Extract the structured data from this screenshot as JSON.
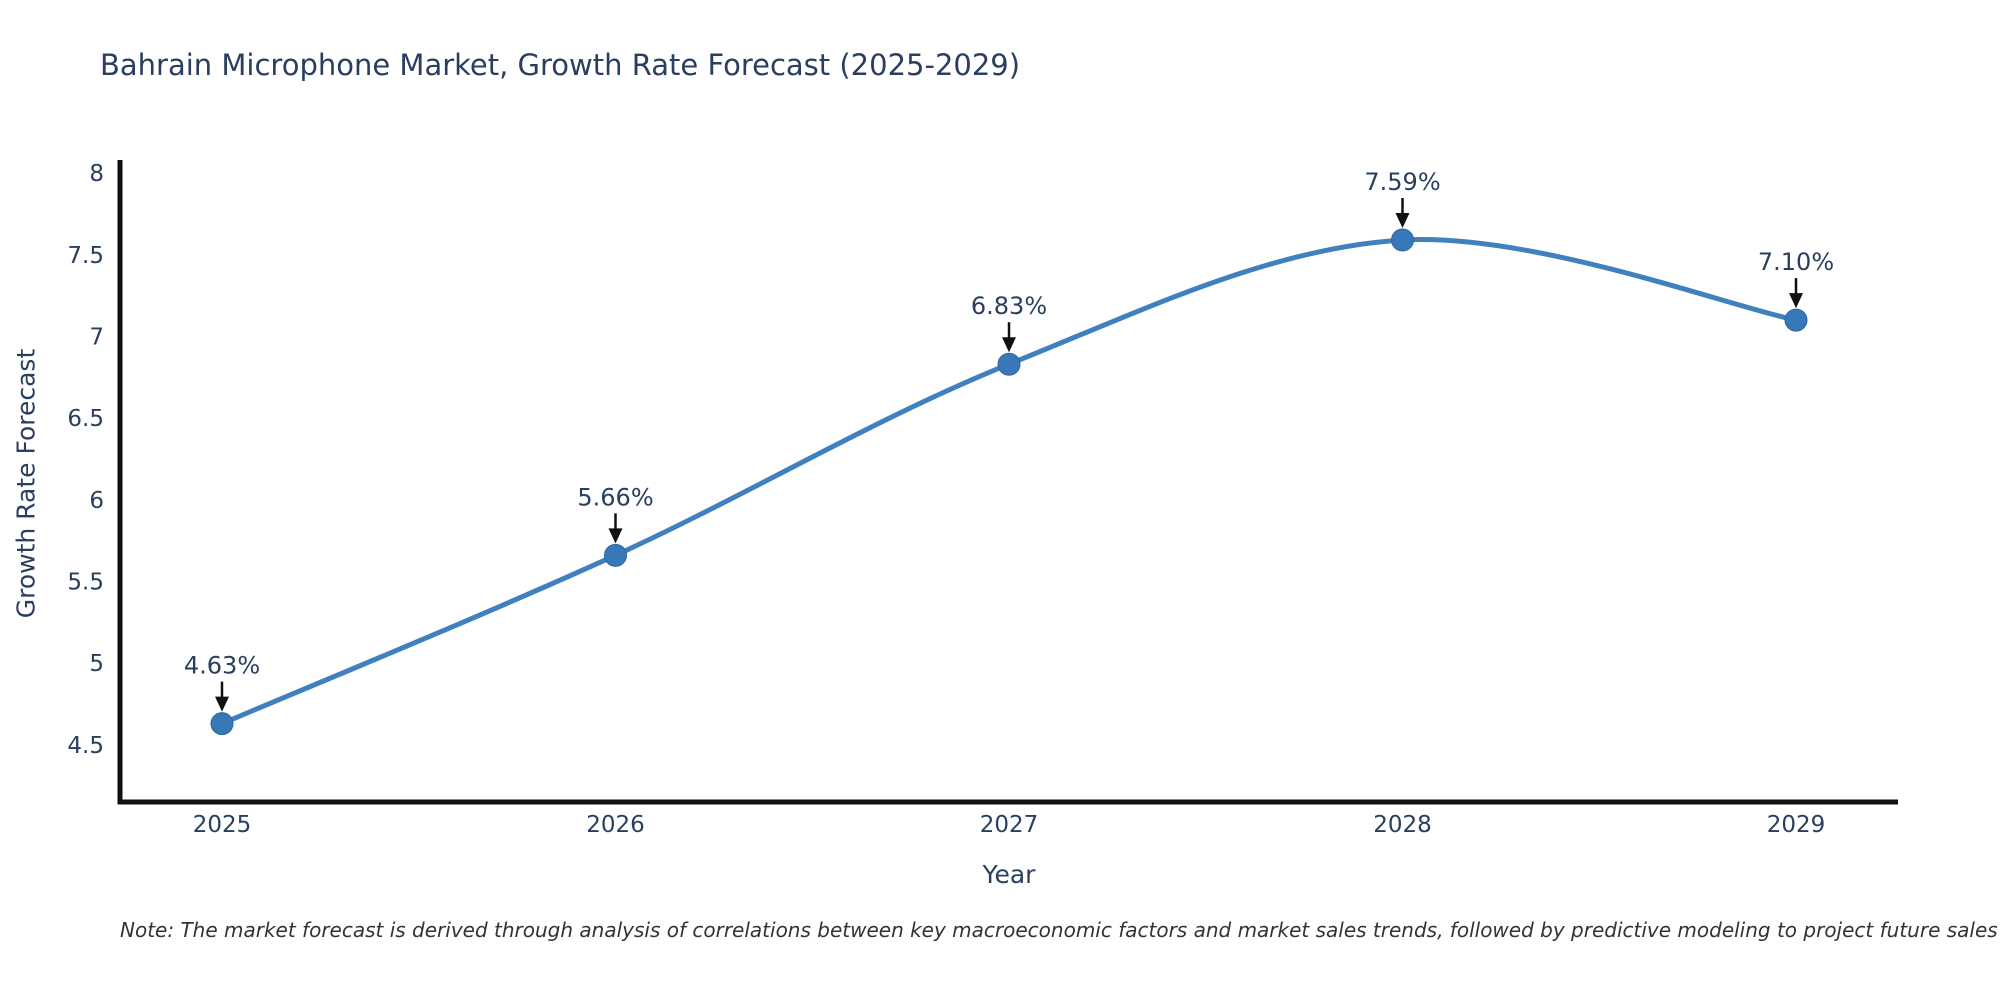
{
  "chart_data": {
    "type": "line",
    "title": "Bahrain Microphone Market, Growth Rate Forecast (2025-2029)",
    "xlabel": "Year",
    "ylabel": "Growth Rate Forecast",
    "categories": [
      "2025",
      "2026",
      "2027",
      "2028",
      "2029"
    ],
    "values": [
      4.63,
      5.66,
      6.83,
      7.59,
      7.1
    ],
    "point_labels": [
      "4.63%",
      "5.66%",
      "6.83%",
      "7.59%",
      "7.10%"
    ],
    "yticks": [
      4.5,
      5,
      5.5,
      6,
      6.5,
      7,
      7.5,
      8
    ],
    "ytick_labels": [
      "4.5",
      "5",
      "5.5",
      "6",
      "6.5",
      "7",
      "7.5",
      "8"
    ],
    "ylim": [
      4.15,
      8.08
    ],
    "line_shape": "spline",
    "grid": false,
    "legend": "none",
    "colors": {
      "line": "#4080bf",
      "marker_fill": "#3778b8",
      "marker_stroke": "#2f669f",
      "axis": "#111111",
      "text": "#2a3f5f",
      "annotation_text": "#2a3f5f",
      "annotation_arrow": "#111111",
      "background": "#ffffff"
    },
    "note": "Note: The market forecast is derived through analysis of correlations between key macroeconomic factors and market sales trends, followed by predictive modeling to project future sales"
  }
}
